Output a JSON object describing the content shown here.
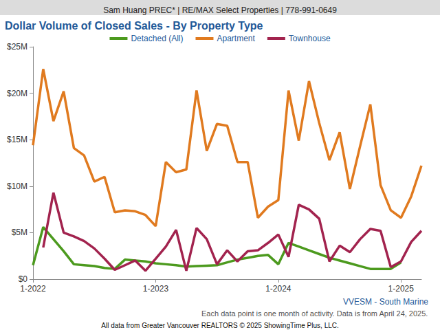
{
  "chart_data": {
    "type": "line",
    "header": "Sam Huang PREC* | RE/MAX Select Properties | 778-991-0649",
    "title": "Dollar Volume of Closed Sales - By Property Type",
    "annotations": [
      "VVESM - South Marine",
      "Each data point is one month of activity. Data is from April 24, 2025.",
      "All data from Greater Vancouver REALTORS © 2025 ShowingTime Plus, LLC."
    ],
    "categories": [
      "1-2022",
      null,
      null,
      null,
      null,
      null,
      null,
      null,
      null,
      null,
      null,
      null,
      "1-2023",
      null,
      null,
      null,
      null,
      null,
      null,
      null,
      null,
      null,
      null,
      null,
      "1-2024",
      null,
      null,
      null,
      null,
      null,
      null,
      null,
      null,
      null,
      null,
      null,
      "1-2025",
      null,
      null
    ],
    "series": [
      {
        "name": "Detached (All)",
        "color": "#4c9a1e",
        "values": [
          1500000,
          5600000,
          4300000,
          3000000,
          1600000,
          1500000,
          1400000,
          1200000,
          1100000,
          2100000,
          2000000,
          1900000,
          1700000,
          1600000,
          1500000,
          1350000,
          1400000,
          1450000,
          1500000,
          1800000,
          2100000,
          2300000,
          2500000,
          2600000,
          1600000,
          3900000,
          3500000,
          3100000,
          2700000,
          2300000,
          2000000,
          1700000,
          1400000,
          1100000,
          1100000,
          1100000,
          1800000,
          null,
          null
        ]
      },
      {
        "name": "Apartment",
        "color": "#e07a1f",
        "values": [
          14400000,
          22600000,
          17000000,
          20200000,
          14100000,
          13300000,
          10500000,
          11000000,
          7200000,
          7400000,
          7300000,
          6900000,
          5700000,
          12600000,
          11500000,
          11800000,
          20300000,
          13800000,
          16700000,
          16500000,
          12600000,
          12600000,
          6600000,
          7800000,
          8500000,
          20300000,
          14900000,
          21300000,
          16800000,
          12800000,
          15800000,
          9700000,
          14300000,
          18800000,
          10100000,
          7400000,
          6600000,
          8900000,
          12200000
        ]
      },
      {
        "name": "Townhouse",
        "color": "#a2234e",
        "values": [
          null,
          3400000,
          9300000,
          5000000,
          4600000,
          4100000,
          3300000,
          2200000,
          1000000,
          1500000,
          2000000,
          900000,
          2200000,
          3500000,
          5300000,
          900000,
          5500000,
          4300000,
          1600000,
          3100000,
          1900000,
          3000000,
          3100000,
          3900000,
          4800000,
          2400000,
          8000000,
          7500000,
          6500000,
          1900000,
          3600000,
          2900000,
          4300000,
          5400000,
          5200000,
          1300000,
          1900000,
          4000000,
          5200000
        ]
      }
    ],
    "ylim": [
      0,
      25000000
    ],
    "yticks": [
      {
        "value": 0,
        "label": "$0"
      },
      {
        "value": 5000000,
        "label": "$5M"
      },
      {
        "value": 10000000,
        "label": "$10M"
      },
      {
        "value": 15000000,
        "label": "$15M"
      },
      {
        "value": 20000000,
        "label": "$20M"
      },
      {
        "value": 25000000,
        "label": "$25M"
      }
    ],
    "grid": false,
    "legend": "top"
  }
}
